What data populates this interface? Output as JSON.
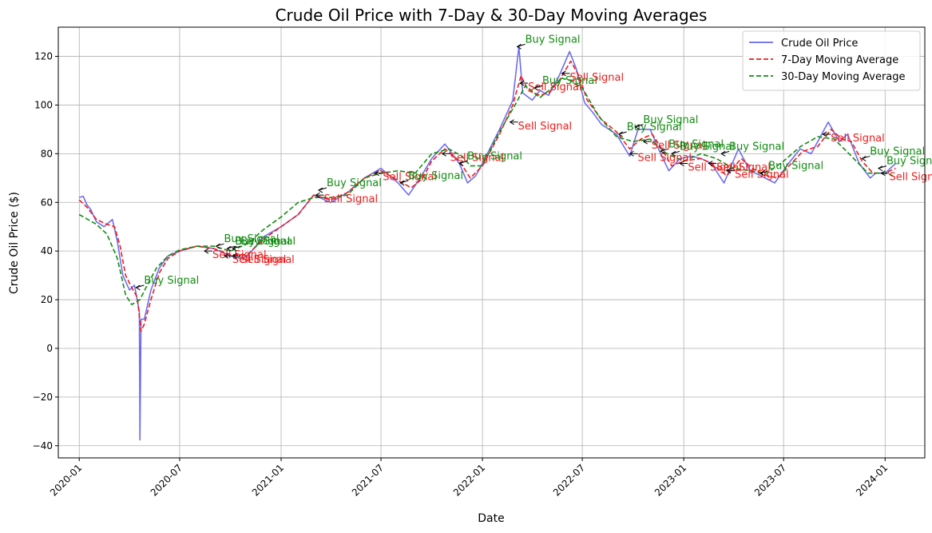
{
  "chart_data": {
    "type": "line",
    "title": "Crude Oil Price with 7-Day & 30-Day Moving Averages",
    "xlabel": "Date",
    "ylabel": "Crude Oil Price ($)",
    "xlim": [
      "2019-11-24",
      "2024-03-13"
    ],
    "ylim": [
      -45,
      132
    ],
    "grid": true,
    "legend_position": "upper-right",
    "xticks": [
      "2020-01",
      "2020-07",
      "2021-01",
      "2021-07",
      "2022-01",
      "2022-07",
      "2023-01",
      "2023-07",
      "2024-01"
    ],
    "yticks": [
      -40,
      -20,
      0,
      20,
      40,
      60,
      80,
      100,
      120
    ],
    "colors": {
      "price": "#6666ee",
      "ma7": "#ee1c1c",
      "ma30": "#138c13",
      "buy": "#138c13",
      "sell": "#ee1c1c"
    },
    "series": [
      {
        "name": "Crude Oil Price",
        "style": "solid",
        "color": "#6666ee",
        "points": [
          [
            "2020-01-01",
            62
          ],
          [
            "2020-01-08",
            62.5
          ],
          [
            "2020-01-15",
            59
          ],
          [
            "2020-01-22",
            57
          ],
          [
            "2020-02-01",
            52
          ],
          [
            "2020-02-15",
            50
          ],
          [
            "2020-03-01",
            53
          ],
          [
            "2020-03-10",
            44
          ],
          [
            "2020-03-20",
            30
          ],
          [
            "2020-04-01",
            24
          ],
          [
            "2020-04-10",
            26
          ],
          [
            "2020-04-15",
            20
          ],
          [
            "2020-04-19",
            15
          ],
          [
            "2020-04-20",
            -37.6
          ],
          [
            "2020-04-22",
            12
          ],
          [
            "2020-04-28",
            12
          ],
          [
            "2020-05-10",
            24
          ],
          [
            "2020-05-25",
            33
          ],
          [
            "2020-06-10",
            38
          ],
          [
            "2020-07-01",
            40
          ],
          [
            "2020-08-01",
            42
          ],
          [
            "2020-09-01",
            41
          ],
          [
            "2020-10-01",
            38
          ],
          [
            "2020-10-20",
            37
          ],
          [
            "2020-11-01",
            38
          ],
          [
            "2020-12-01",
            46
          ],
          [
            "2021-01-01",
            50
          ],
          [
            "2021-02-01",
            55
          ],
          [
            "2021-03-01",
            63
          ],
          [
            "2021-04-01",
            60
          ],
          [
            "2021-05-01",
            64
          ],
          [
            "2021-06-01",
            70
          ],
          [
            "2021-07-01",
            74
          ],
          [
            "2021-08-01",
            68
          ],
          [
            "2021-08-20",
            63
          ],
          [
            "2021-09-10",
            70
          ],
          [
            "2021-10-01",
            78
          ],
          [
            "2021-10-25",
            84
          ],
          [
            "2021-11-20",
            76
          ],
          [
            "2021-12-05",
            68
          ],
          [
            "2021-12-20",
            71
          ],
          [
            "2022-01-01",
            76
          ],
          [
            "2022-02-01",
            90
          ],
          [
            "2022-02-25",
            102
          ],
          [
            "2022-03-08",
            124
          ],
          [
            "2022-03-15",
            105
          ],
          [
            "2022-04-01",
            102
          ],
          [
            "2022-04-15",
            106
          ],
          [
            "2022-05-01",
            104
          ],
          [
            "2022-05-20",
            112
          ],
          [
            "2022-06-08",
            122
          ],
          [
            "2022-06-20",
            115
          ],
          [
            "2022-07-05",
            101
          ],
          [
            "2022-07-20",
            97
          ],
          [
            "2022-08-05",
            92
          ],
          [
            "2022-09-01",
            88
          ],
          [
            "2022-09-25",
            79
          ],
          [
            "2022-10-10",
            90
          ],
          [
            "2022-11-01",
            90
          ],
          [
            "2022-11-20",
            80
          ],
          [
            "2022-12-05",
            73
          ],
          [
            "2022-12-25",
            78
          ],
          [
            "2023-01-15",
            79
          ],
          [
            "2023-02-01",
            78
          ],
          [
            "2023-02-20",
            76
          ],
          [
            "2023-03-15",
            68
          ],
          [
            "2023-04-10",
            82
          ],
          [
            "2023-05-01",
            73
          ],
          [
            "2023-05-20",
            71
          ],
          [
            "2023-06-15",
            68
          ],
          [
            "2023-07-10",
            76
          ],
          [
            "2023-07-31",
            82
          ],
          [
            "2023-08-20",
            80
          ],
          [
            "2023-09-20",
            93
          ],
          [
            "2023-10-10",
            85
          ],
          [
            "2023-10-25",
            88
          ],
          [
            "2023-11-15",
            76
          ],
          [
            "2023-12-05",
            70
          ],
          [
            "2023-12-15",
            72
          ],
          [
            "2024-01-01",
            72
          ],
          [
            "2024-01-20",
            76
          ]
        ]
      },
      {
        "name": "7-Day Moving Average",
        "style": "dashed",
        "color": "#ee1c1c",
        "points": [
          [
            "2020-01-01",
            61
          ],
          [
            "2020-01-15",
            58
          ],
          [
            "2020-02-01",
            53
          ],
          [
            "2020-02-20",
            51
          ],
          [
            "2020-03-05",
            50
          ],
          [
            "2020-03-15",
            42
          ],
          [
            "2020-03-25",
            30
          ],
          [
            "2020-04-05",
            25
          ],
          [
            "2020-04-15",
            21
          ],
          [
            "2020-04-22",
            7
          ],
          [
            "2020-04-28",
            10
          ],
          [
            "2020-05-10",
            20
          ],
          [
            "2020-05-25",
            31
          ],
          [
            "2020-06-10",
            37
          ],
          [
            "2020-07-01",
            40
          ],
          [
            "2020-08-01",
            42
          ],
          [
            "2020-09-01",
            41
          ],
          [
            "2020-10-01",
            38.5
          ],
          [
            "2020-11-01",
            38.5
          ],
          [
            "2020-12-01",
            45
          ],
          [
            "2021-01-01",
            50
          ],
          [
            "2021-02-01",
            55
          ],
          [
            "2021-03-01",
            63
          ],
          [
            "2021-04-01",
            61
          ],
          [
            "2021-05-01",
            64
          ],
          [
            "2021-06-01",
            70
          ],
          [
            "2021-07-01",
            73
          ],
          [
            "2021-08-01",
            69
          ],
          [
            "2021-08-25",
            66
          ],
          [
            "2021-09-15",
            70
          ],
          [
            "2021-10-01",
            77
          ],
          [
            "2021-10-25",
            82
          ],
          [
            "2021-11-20",
            77
          ],
          [
            "2021-12-10",
            70
          ],
          [
            "2022-01-01",
            75
          ],
          [
            "2022-02-01",
            88
          ],
          [
            "2022-02-25",
            100
          ],
          [
            "2022-03-12",
            112
          ],
          [
            "2022-03-25",
            106
          ],
          [
            "2022-04-15",
            104
          ],
          [
            "2022-05-01",
            105
          ],
          [
            "2022-05-20",
            110
          ],
          [
            "2022-06-10",
            118
          ],
          [
            "2022-06-25",
            112
          ],
          [
            "2022-07-10",
            102
          ],
          [
            "2022-08-05",
            94
          ],
          [
            "2022-09-01",
            89
          ],
          [
            "2022-09-25",
            82
          ],
          [
            "2022-10-15",
            86
          ],
          [
            "2022-11-05",
            88
          ],
          [
            "2022-11-25",
            81
          ],
          [
            "2022-12-10",
            75
          ],
          [
            "2023-01-01",
            77
          ],
          [
            "2023-02-01",
            78
          ],
          [
            "2023-02-20",
            76
          ],
          [
            "2023-03-20",
            71
          ],
          [
            "2023-04-15",
            78
          ],
          [
            "2023-05-05",
            74
          ],
          [
            "2023-06-01",
            71
          ],
          [
            "2023-06-20",
            70
          ],
          [
            "2023-07-15",
            76
          ],
          [
            "2023-08-05",
            81
          ],
          [
            "2023-09-01",
            83
          ],
          [
            "2023-09-25",
            90
          ],
          [
            "2023-10-15",
            86
          ],
          [
            "2023-11-01",
            85
          ],
          [
            "2023-11-20",
            77
          ],
          [
            "2023-12-10",
            72
          ],
          [
            "2024-01-01",
            72
          ],
          [
            "2024-01-20",
            74
          ]
        ]
      },
      {
        "name": "30-Day Moving Average",
        "style": "dashed",
        "color": "#138c13",
        "points": [
          [
            "2020-01-01",
            55
          ],
          [
            "2020-02-01",
            51
          ],
          [
            "2020-02-20",
            47
          ],
          [
            "2020-03-10",
            37
          ],
          [
            "2020-03-25",
            22
          ],
          [
            "2020-04-05",
            18
          ],
          [
            "2020-04-20",
            20
          ],
          [
            "2020-05-01",
            25
          ],
          [
            "2020-05-20",
            33
          ],
          [
            "2020-06-10",
            38
          ],
          [
            "2020-07-01",
            40.5
          ],
          [
            "2020-08-01",
            42
          ],
          [
            "2020-09-01",
            42
          ],
          [
            "2020-10-01",
            40
          ],
          [
            "2020-11-01",
            43
          ],
          [
            "2020-12-01",
            49
          ],
          [
            "2021-01-01",
            54
          ],
          [
            "2021-02-01",
            60
          ],
          [
            "2021-03-01",
            62
          ],
          [
            "2021-04-01",
            62
          ],
          [
            "2021-05-01",
            63
          ],
          [
            "2021-06-01",
            70
          ],
          [
            "2021-07-01",
            72
          ],
          [
            "2021-08-01",
            73
          ],
          [
            "2021-09-01",
            72
          ],
          [
            "2021-10-01",
            80
          ],
          [
            "2021-11-01",
            82
          ],
          [
            "2021-11-25",
            79
          ],
          [
            "2021-12-10",
            75
          ],
          [
            "2022-01-01",
            75
          ],
          [
            "2022-02-01",
            89
          ],
          [
            "2022-03-01",
            100
          ],
          [
            "2022-03-20",
            108
          ],
          [
            "2022-04-15",
            103
          ],
          [
            "2022-05-01",
            106
          ],
          [
            "2022-05-25",
            111
          ],
          [
            "2022-06-10",
            110
          ],
          [
            "2022-07-01",
            107
          ],
          [
            "2022-08-01",
            95
          ],
          [
            "2022-09-01",
            87
          ],
          [
            "2022-10-01",
            85
          ],
          [
            "2022-11-01",
            86
          ],
          [
            "2022-12-01",
            80
          ],
          [
            "2023-01-01",
            77
          ],
          [
            "2023-02-01",
            80
          ],
          [
            "2023-03-01",
            78
          ],
          [
            "2023-04-01",
            74
          ],
          [
            "2023-05-01",
            73
          ],
          [
            "2023-06-01",
            72
          ],
          [
            "2023-07-01",
            77
          ],
          [
            "2023-08-01",
            83
          ],
          [
            "2023-09-01",
            87
          ],
          [
            "2023-10-01",
            86
          ],
          [
            "2023-11-01",
            79
          ],
          [
            "2023-12-01",
            72
          ],
          [
            "2024-01-01",
            72
          ],
          [
            "2024-01-15",
            71
          ]
        ]
      }
    ],
    "annotations": [
      {
        "text": "Buy Signal",
        "type": "buy",
        "date": "2020-04-13",
        "value": 25
      },
      {
        "text": "Buy Signal",
        "type": "buy",
        "date": "2020-09-05",
        "value": 42
      },
      {
        "text": "Sell Signal",
        "type": "sell",
        "date": "2020-08-15",
        "value": 40
      },
      {
        "text": "Buy Signal",
        "type": "buy",
        "date": "2020-09-25",
        "value": 41
      },
      {
        "text": "Buy Signal",
        "type": "buy",
        "date": "2020-10-05",
        "value": 41
      },
      {
        "text": "Sell Signal",
        "type": "sell",
        "date": "2020-09-20",
        "value": 38
      },
      {
        "text": "Sell Signal",
        "type": "sell",
        "date": "2020-10-05",
        "value": 38
      },
      {
        "text": "Buy Signal",
        "type": "buy",
        "date": "2021-03-10",
        "value": 65
      },
      {
        "text": "Sell Signal",
        "type": "sell",
        "date": "2021-03-05",
        "value": 63
      },
      {
        "text": "Sell Signal",
        "type": "sell",
        "date": "2021-06-20",
        "value": 72
      },
      {
        "text": "Buy Signal",
        "type": "buy",
        "date": "2021-08-05",
        "value": 68
      },
      {
        "text": "Sell Signal",
        "type": "sell",
        "date": "2021-10-20",
        "value": 80
      },
      {
        "text": "Buy Signal",
        "type": "buy",
        "date": "2021-11-20",
        "value": 76
      },
      {
        "text": "Buy Signal",
        "type": "buy",
        "date": "2022-03-05",
        "value": 124
      },
      {
        "text": "Sell Signal",
        "type": "sell",
        "date": "2022-02-20",
        "value": 93
      },
      {
        "text": "Sell Signal",
        "type": "sell",
        "date": "2022-03-10",
        "value": 109
      },
      {
        "text": "Buy Signal",
        "type": "buy",
        "date": "2022-04-05",
        "value": 107
      },
      {
        "text": "Sell Signal",
        "type": "sell",
        "date": "2022-05-25",
        "value": 113
      },
      {
        "text": "Buy Signal",
        "type": "buy",
        "date": "2022-09-05",
        "value": 88
      },
      {
        "text": "Buy Signal",
        "type": "buy",
        "date": "2022-10-05",
        "value": 91
      },
      {
        "text": "Sell Signal",
        "type": "sell",
        "date": "2022-09-25",
        "value": 80
      },
      {
        "text": "Sell Signal",
        "type": "sell",
        "date": "2022-10-20",
        "value": 85
      },
      {
        "text": "Buy Signal",
        "type": "buy",
        "date": "2022-11-20",
        "value": 81
      },
      {
        "text": "Buy Signal",
        "type": "buy",
        "date": "2022-12-10",
        "value": 80
      },
      {
        "text": "Sell Signal",
        "type": "sell",
        "date": "2022-12-25",
        "value": 76
      },
      {
        "text": "Sell Signal",
        "type": "sell",
        "date": "2023-02-15",
        "value": 76
      },
      {
        "text": "Buy Signal",
        "type": "buy",
        "date": "2023-03-10",
        "value": 80
      },
      {
        "text": "Sell Signal",
        "type": "sell",
        "date": "2023-03-20",
        "value": 73
      },
      {
        "text": "Buy Signal",
        "type": "buy",
        "date": "2023-05-20",
        "value": 72
      },
      {
        "text": "Sell Signal",
        "type": "sell",
        "date": "2023-09-10",
        "value": 88
      },
      {
        "text": "Buy Signal",
        "type": "buy",
        "date": "2023-11-20",
        "value": 78
      },
      {
        "text": "Buy Signal",
        "type": "buy",
        "date": "2023-12-20",
        "value": 74
      },
      {
        "text": "Sell Signal",
        "type": "sell",
        "date": "2023-12-25",
        "value": 72
      }
    ]
  }
}
